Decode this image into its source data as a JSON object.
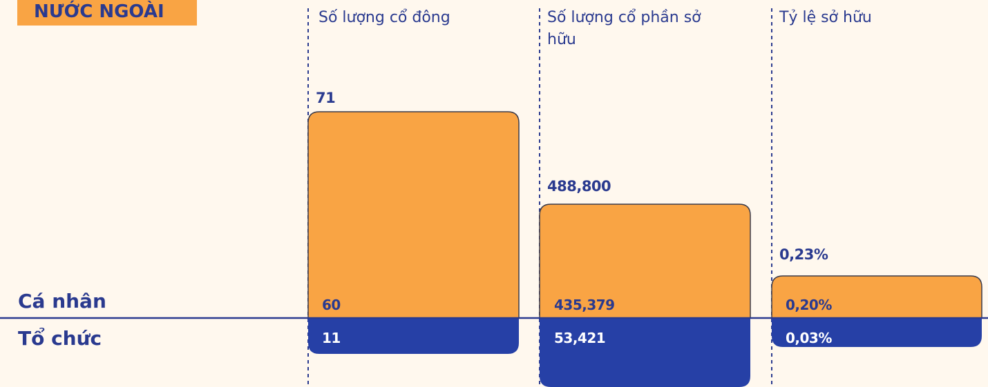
{
  "title": "NƯỚC NGOÀI",
  "row_labels": [
    "Cá nhân",
    "Tổ chức"
  ],
  "panels": [
    {
      "header": "Số lượng cổ đông",
      "total": 71,
      "values": [
        60,
        11
      ]
    },
    {
      "header": "Số lượng cổ phần sở hữu",
      "total": 488800,
      "total_label": "488,800",
      "values": [
        435379,
        53421
      ],
      "value_labels": [
        "435,379",
        "53,421"
      ]
    },
    {
      "header": "Tỷ lệ sở hữu",
      "total": 0.23,
      "total_label": "0,23%",
      "values": [
        0.2,
        0.03
      ],
      "value_labels": [
        "0,20%",
        "0,03%"
      ]
    }
  ]
}
